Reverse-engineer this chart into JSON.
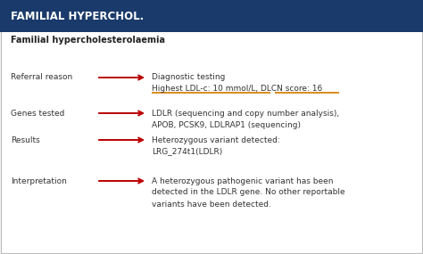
{
  "header_text": "FAMILIAL HYPERCHOL.",
  "header_bg": "#1a3a6b",
  "header_text_color": "#ffffff",
  "bg_color": "#f5f5f5",
  "content_bg": "#ffffff",
  "subtitle": "Familial hypercholesterolaemia",
  "subtitle_color": "#222222",
  "rows": [
    {
      "label": "Referral reason",
      "value_lines": [
        "Diagnostic testing",
        "Highest LDL-c: 10 mmol/L, DLCN score: 16"
      ],
      "underline": true
    },
    {
      "label": "Genes tested",
      "value_lines": [
        "LDLR (sequencing and copy number analysis),",
        "APOB, PCSK9, LDLRAP1 (sequencing)"
      ],
      "underline": false
    },
    {
      "label": "Results",
      "value_lines": [
        "Heterozygous variant detected:",
        "LRG_274t1(LDLR)"
      ],
      "underline": false
    },
    {
      "label": "Interpretation",
      "value_lines": [
        "A heterozygous pathogenic variant has been",
        "detected in the LDLR gene. No other reportable",
        "variants have been detected."
      ],
      "underline": false
    }
  ],
  "label_color": "#333333",
  "value_color": "#333333",
  "arrow_color": "#bb0000",
  "underline_color": "#d4820a",
  "border_color": "#bbbbbb",
  "fig_width": 4.74,
  "fig_height": 2.85,
  "dpi": 100
}
